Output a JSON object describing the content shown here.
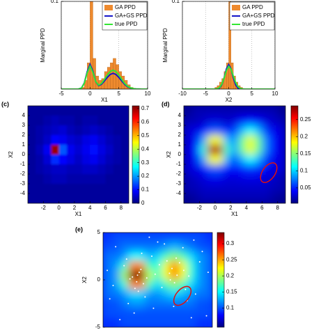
{
  "chart_data": [
    {
      "type": "histogram",
      "xlabel": "X1",
      "ylabel": "Marginal PPD",
      "xlim": [
        -5,
        10
      ],
      "ylim": [
        0,
        0.1
      ],
      "xticks": [
        -5,
        0,
        5,
        10
      ],
      "yticks": [
        0.1
      ],
      "grid": true,
      "legend": "northeast",
      "series": [
        {
          "name": "GA PPD",
          "color": "#ee8a2e",
          "bins": [
            -1.5,
            -1,
            -0.5,
            0,
            0.5,
            1,
            1.5,
            2,
            2.5,
            3,
            3.5,
            4,
            4.5,
            5,
            5.5,
            6,
            6.5,
            7,
            7.5
          ],
          "values": [
            0.002,
            0.01,
            0.03,
            0.1,
            0.035,
            0.015,
            0.01,
            0.012,
            0.02,
            0.025,
            0.03,
            0.035,
            0.028,
            0.02,
            0.015,
            0.01,
            0.005,
            0.002
          ]
        },
        {
          "name": "GA+GS PPD",
          "color": "#1414c8",
          "x": [
            -5,
            -4,
            -3.5,
            -3,
            -2.5,
            -2,
            -1.5,
            -1,
            -0.5,
            0,
            0.5,
            1,
            1.5,
            2,
            2.5,
            3,
            3.5,
            4,
            4.5,
            5,
            5.5,
            6,
            6.5,
            7,
            7.5,
            8,
            8.5,
            9,
            10
          ],
          "values": [
            0,
            0,
            0,
            0,
            0,
            0.0001,
            0.0012,
            0.007,
            0.0198,
            0.0282,
            0.0203,
            0.0083,
            0.004,
            0.0056,
            0.0093,
            0.0134,
            0.0167,
            0.018,
            0.0167,
            0.0134,
            0.0093,
            0.0055,
            0.0028,
            0.0013,
            0.0005,
            0.0002,
            0.0001,
            0,
            0
          ]
        },
        {
          "name": "true PPD",
          "color": "#33e633",
          "x": [
            -5,
            -4,
            -3.5,
            -3,
            -2.5,
            -2,
            -1.5,
            -1,
            -0.5,
            0,
            0.5,
            1,
            1.5,
            2,
            2.5,
            3,
            3.5,
            4,
            4.5,
            5,
            5.5,
            6,
            6.5,
            7,
            7.5,
            8,
            8.5,
            9,
            10
          ],
          "values": [
            0,
            0,
            0,
            0,
            0,
            0.0001,
            0.0011,
            0.0065,
            0.0184,
            0.0262,
            0.019,
            0.0085,
            0.0045,
            0.0066,
            0.0112,
            0.0161,
            0.02,
            0.0216,
            0.02,
            0.0161,
            0.0112,
            0.0066,
            0.0034,
            0.0016,
            0.0006,
            0.0002,
            0.0001,
            0,
            0
          ]
        }
      ]
    },
    {
      "type": "histogram",
      "xlabel": "X2",
      "ylabel": "Marginal PPD",
      "xlim": [
        -10,
        10
      ],
      "ylim": [
        0,
        0.1
      ],
      "xticks": [
        -10,
        -5,
        0,
        5,
        10
      ],
      "yticks": [
        0.1
      ],
      "grid": true,
      "legend": "northeast",
      "series": [
        {
          "name": "GA PPD",
          "color": "#ee8a2e",
          "bins": [
            -3,
            -2.5,
            -2,
            -1.5,
            -1,
            -0.5,
            0,
            0.5,
            1,
            1.5,
            2,
            2.5,
            3
          ],
          "values": [
            0.002,
            0.004,
            0.008,
            0.012,
            0.02,
            0.03,
            0.1,
            0.03,
            0.015,
            0.008,
            0.004,
            0.002
          ]
        },
        {
          "name": "GA+GS PPD",
          "color": "#1414c8",
          "x": [
            -10,
            -4,
            -3.5,
            -3,
            -2.5,
            -2,
            -1.5,
            -1,
            -0.5,
            0,
            0.5,
            1,
            1.5,
            2,
            2.5,
            3,
            3.5,
            4,
            10
          ],
          "values": [
            0,
            0,
            0,
            0,
            0.0002,
            0.0012,
            0.0048,
            0.0128,
            0.023,
            0.028,
            0.023,
            0.0128,
            0.0048,
            0.0012,
            0.0002,
            0,
            0,
            0,
            0
          ]
        },
        {
          "name": "true PPD",
          "color": "#33e633",
          "x": [
            -10,
            -4,
            -3.5,
            -3,
            -2.5,
            -2,
            -1.5,
            -1,
            -0.5,
            0,
            0.5,
            1,
            1.5,
            2,
            2.5,
            3,
            3.5,
            4,
            10
          ],
          "values": [
            0,
            0,
            0,
            0.0001,
            0.0004,
            0.0017,
            0.0055,
            0.0125,
            0.021,
            0.026,
            0.0225,
            0.015,
            0.0075,
            0.0028,
            0.0008,
            0.0002,
            0,
            0,
            0
          ]
        }
      ]
    },
    {
      "type": "heatmap",
      "panel_label": "(c)",
      "xlabel": "X1",
      "ylabel": "X2",
      "colormap": "jet",
      "blur": 1.5,
      "xlim": [
        -4,
        9
      ],
      "ylim": [
        -5,
        5
      ],
      "xticks": [
        -2,
        0,
        2,
        4,
        6,
        8
      ],
      "yticks": [
        -4,
        -3,
        -2,
        -1,
        0,
        1,
        2,
        3,
        4
      ],
      "zlim": [
        0,
        0.72
      ],
      "zticks": [
        0,
        0.1,
        0.2,
        0.3,
        0.4,
        0.5,
        0.6,
        0.7
      ],
      "x": [
        -3.5,
        -2.5,
        -1.5,
        -0.5,
        0.5,
        1.5,
        2.5,
        3.5,
        4.5,
        5.5,
        6.5,
        7.5,
        8.5
      ],
      "y": [
        4.5,
        3.5,
        2.5,
        1.5,
        0.5,
        -0.5,
        -1.5,
        -2.5,
        -3.5,
        -4.5
      ],
      "z": [
        [
          0.02,
          0.02,
          0.02,
          0.02,
          0.02,
          0.02,
          0.02,
          0.02,
          0.02,
          0.02,
          0.02,
          0.02,
          0.02
        ],
        [
          0.02,
          0.02,
          0.03,
          0.04,
          0.03,
          0.03,
          0.02,
          0.03,
          0.03,
          0.02,
          0.02,
          0.02,
          0.02
        ],
        [
          0.02,
          0.03,
          0.04,
          0.05,
          0.06,
          0.04,
          0.03,
          0.04,
          0.05,
          0.04,
          0.03,
          0.02,
          0.02
        ],
        [
          0.02,
          0.03,
          0.05,
          0.09,
          0.08,
          0.06,
          0.05,
          0.07,
          0.08,
          0.06,
          0.04,
          0.03,
          0.02
        ],
        [
          0.02,
          0.04,
          0.08,
          0.7,
          0.15,
          0.08,
          0.06,
          0.08,
          0.1,
          0.07,
          0.05,
          0.03,
          0.02
        ],
        [
          0.02,
          0.03,
          0.06,
          0.12,
          0.09,
          0.07,
          0.05,
          0.07,
          0.08,
          0.06,
          0.04,
          0.03,
          0.02
        ],
        [
          0.02,
          0.03,
          0.04,
          0.05,
          0.05,
          0.04,
          0.04,
          0.05,
          0.05,
          0.04,
          0.03,
          0.02,
          0.02
        ],
        [
          0.02,
          0.02,
          0.03,
          0.04,
          0.04,
          0.03,
          0.03,
          0.03,
          0.03,
          0.03,
          0.02,
          0.02,
          0.02
        ],
        [
          0.02,
          0.02,
          0.02,
          0.02,
          0.02,
          0.02,
          0.02,
          0.02,
          0.02,
          0.02,
          0.02,
          0.02,
          0.02
        ],
        [
          0.02,
          0.02,
          0.02,
          0.02,
          0.02,
          0.02,
          0.02,
          0.02,
          0.02,
          0.02,
          0.02,
          0.02,
          0.02
        ]
      ]
    },
    {
      "type": "heatmap",
      "panel_label": "(d)",
      "xlabel": "X1",
      "ylabel": "X2",
      "colormap": "jet",
      "blur": 6,
      "xlim": [
        -4,
        9
      ],
      "ylim": [
        -5,
        5
      ],
      "xticks": [
        -2,
        0,
        2,
        4,
        6,
        8
      ],
      "yticks": [
        -4,
        -3,
        -2,
        -1,
        0,
        1,
        2,
        3,
        4
      ],
      "zlim": [
        0.005,
        0.29
      ],
      "zticks": [
        0.05,
        0.1,
        0.15,
        0.2,
        0.25
      ],
      "x": [
        -3.5,
        -2.5,
        -1.5,
        -0.5,
        0.5,
        1.5,
        2.5,
        3.5,
        4.5,
        5.5,
        6.5,
        7.5,
        8.5
      ],
      "y": [
        4.5,
        3.5,
        2.5,
        1.5,
        0.5,
        -0.5,
        -1.5,
        -2.5,
        -3.5,
        -4.5
      ],
      "z": [
        [
          0.01,
          0.02,
          0.02,
          0.02,
          0.02,
          0.02,
          0.02,
          0.02,
          0.02,
          0.02,
          0.02,
          0.02,
          0.01
        ],
        [
          0.02,
          0.02,
          0.025,
          0.03,
          0.03,
          0.025,
          0.03,
          0.039,
          0.045,
          0.039,
          0.03,
          0.025,
          0.02
        ],
        [
          0.03,
          0.032,
          0.042,
          0.064,
          0.064,
          0.048,
          0.057,
          0.091,
          0.112,
          0.091,
          0.055,
          0.036,
          0.03
        ],
        [
          0.03,
          0.0375,
          0.084,
          0.18,
          0.181,
          0.094,
          0.083,
          0.141,
          0.179,
          0.141,
          0.076,
          0.04,
          0.031
        ],
        [
          0.031,
          0.042,
          0.12,
          0.276,
          0.277,
          0.13,
          0.088,
          0.142,
          0.179,
          0.141,
          0.076,
          0.04,
          0.031
        ],
        [
          0.03,
          0.0375,
          0.084,
          0.18,
          0.182,
          0.09,
          0.063,
          0.091,
          0.112,
          0.091,
          0.055,
          0.036,
          0.031
        ],
        [
          0.03,
          0.032,
          0.042,
          0.063,
          0.063,
          0.043,
          0.04,
          0.049,
          0.055,
          0.049,
          0.038,
          0.032,
          0.03
        ],
        [
          0.02,
          0.025,
          0.03,
          0.035,
          0.035,
          0.03,
          0.03,
          0.032,
          0.033,
          0.032,
          0.03,
          0.025,
          0.02
        ],
        [
          0.02,
          0.02,
          0.025,
          0.025,
          0.025,
          0.025,
          0.025,
          0.025,
          0.025,
          0.025,
          0.025,
          0.02,
          0.02
        ],
        [
          0.01,
          0.015,
          0.02,
          0.02,
          0.02,
          0.02,
          0.02,
          0.02,
          0.02,
          0.02,
          0.02,
          0.015,
          0.01
        ]
      ]
    },
    {
      "type": "heatmap",
      "panel_label": "(e)",
      "ylabel": "X2",
      "colormap": "jet",
      "blur": 6,
      "xlim": [
        -4,
        9
      ],
      "ylim": [
        -5,
        5
      ],
      "yticks": [
        -5,
        0,
        5
      ],
      "zlim": [
        0.04,
        0.335
      ],
      "zticks": [
        0.1,
        0.15,
        0.2,
        0.25,
        0.3
      ],
      "x": [
        -3.5,
        -2.5,
        -1.5,
        -0.5,
        0.5,
        1.5,
        2.5,
        3.5,
        4.5,
        5.5,
        6.5,
        7.5,
        8.5
      ],
      "y": [
        4.5,
        3.5,
        2.5,
        1.5,
        0.5,
        -0.5,
        -1.5,
        -2.5,
        -3.5,
        -4.5
      ],
      "z": [
        [
          0.09,
          0.1,
          0.1,
          0.1,
          0.1,
          0.1,
          0.1,
          0.1,
          0.1,
          0.1,
          0.1,
          0.1,
          0.09
        ],
        [
          0.1,
          0.1,
          0.11,
          0.11,
          0.11,
          0.11,
          0.11,
          0.12,
          0.13,
          0.12,
          0.11,
          0.1,
          0.1
        ],
        [
          0.11,
          0.11,
          0.12,
          0.15,
          0.15,
          0.13,
          0.14,
          0.17,
          0.19,
          0.17,
          0.14,
          0.12,
          0.11
        ],
        [
          0.11,
          0.12,
          0.16,
          0.26,
          0.26,
          0.17,
          0.16,
          0.22,
          0.26,
          0.22,
          0.16,
          0.12,
          0.11
        ],
        [
          0.11,
          0.12,
          0.2,
          0.36,
          0.36,
          0.21,
          0.17,
          0.22,
          0.26,
          0.22,
          0.16,
          0.12,
          0.11
        ],
        [
          0.11,
          0.12,
          0.16,
          0.26,
          0.26,
          0.17,
          0.14,
          0.17,
          0.19,
          0.17,
          0.14,
          0.12,
          0.11
        ],
        [
          0.11,
          0.11,
          0.12,
          0.14,
          0.14,
          0.12,
          0.12,
          0.13,
          0.14,
          0.13,
          0.12,
          0.11,
          0.11
        ],
        [
          0.1,
          0.1,
          0.11,
          0.12,
          0.12,
          0.11,
          0.11,
          0.11,
          0.11,
          0.11,
          0.11,
          0.1,
          0.1
        ],
        [
          0.1,
          0.1,
          0.1,
          0.1,
          0.1,
          0.1,
          0.1,
          0.1,
          0.1,
          0.1,
          0.1,
          0.1,
          0.1
        ],
        [
          0.09,
          0.09,
          0.1,
          0.1,
          0.1,
          0.1,
          0.1,
          0.1,
          0.1,
          0.1,
          0.1,
          0.09,
          0.09
        ]
      ],
      "points": {
        "color": "#ffffff",
        "x": [
          -0.5,
          0.3,
          0.8,
          -0.2,
          0.1,
          -0.8,
          1.2,
          0.5,
          -1.5,
          0.0,
          4.2,
          4.8,
          5.1,
          3.9,
          4.5,
          5.6,
          3.6,
          4.0,
          6.2,
          4.7,
          -2.5,
          -3.2,
          2.0,
          2.5,
          1.8,
          7.0,
          7.8,
          8.3,
          -3.5,
          6.8,
          3.0,
          2.7,
          -1.0,
          1.0,
          6.0,
          5.5,
          -2.0,
          8.5,
          0.6,
          -0.3,
          3.3,
          4.4,
          7.5,
          -2.8,
          1.5,
          2.2,
          5.8,
          0.2,
          -1.2,
          6.5
        ],
        "y": [
          0.3,
          0.8,
          -0.4,
          -0.9,
          0.5,
          0.1,
          0.2,
          1.1,
          1.5,
          -0.2,
          1.2,
          0.5,
          1.8,
          0.7,
          -0.3,
          1.0,
          2.0,
          0.0,
          0.4,
          2.3,
          3.5,
          -2.0,
          -3.0,
          4.0,
          2.5,
          -1.5,
          3.0,
          -3.8,
          1.0,
          4.2,
          -0.8,
          1.6,
          -2.5,
          -1.8,
          -2.2,
          3.4,
          -4.2,
          0.8,
          2.8,
          -3.5,
          3.8,
          -2.8,
          1.9,
          -0.6,
          4.5,
          0.6,
          -1.0,
          -1.2,
          2.2,
          -4.0
        ]
      }
    }
  ]
}
